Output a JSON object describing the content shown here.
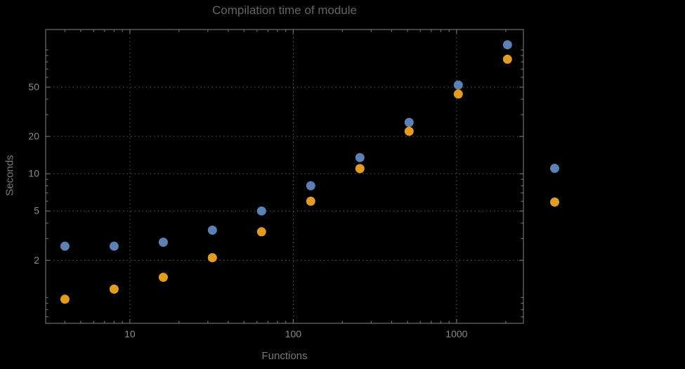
{
  "chart_data": {
    "type": "scatter",
    "title": "Compilation time of module",
    "xlabel": "Functions",
    "ylabel": "Seconds",
    "x_scale": "log",
    "y_scale": "log",
    "xlim": [
      3.05,
      2565
    ],
    "ylim": [
      0.62,
      146
    ],
    "grid": true,
    "x_ticks": [
      {
        "value": 10,
        "label": "10"
      },
      {
        "value": 100,
        "label": "100"
      },
      {
        "value": 1000,
        "label": "1000"
      }
    ],
    "y_ticks": [
      {
        "value": 2,
        "label": "2"
      },
      {
        "value": 5,
        "label": "5"
      },
      {
        "value": 10,
        "label": "10"
      },
      {
        "value": 20,
        "label": "20"
      },
      {
        "value": 50,
        "label": "50"
      }
    ],
    "x": [
      4,
      8,
      16,
      32,
      64,
      128,
      256,
      512,
      1024,
      2048
    ],
    "series": [
      {
        "name": "series_1",
        "color": "#5e81b5",
        "values": [
          2.6,
          2.6,
          2.8,
          3.5,
          5.0,
          8.0,
          13.5,
          26,
          52,
          110
        ]
      },
      {
        "name": "series_2",
        "color": "#e19c24",
        "values": [
          0.97,
          1.17,
          1.46,
          2.1,
          3.4,
          6.0,
          11,
          22,
          44,
          84
        ]
      }
    ],
    "legend_position": "right",
    "legend_markers": [
      {
        "series": "series_1",
        "color": "#5e81b5"
      },
      {
        "series": "series_2",
        "color": "#e19c24"
      }
    ]
  },
  "colors": {
    "background": "#000000",
    "frame": "#6e6e6e",
    "grid": "#5c5c5c",
    "title": "#646464",
    "tick_label": "#8a8a8a",
    "axis_label": "#7a7a7a"
  }
}
